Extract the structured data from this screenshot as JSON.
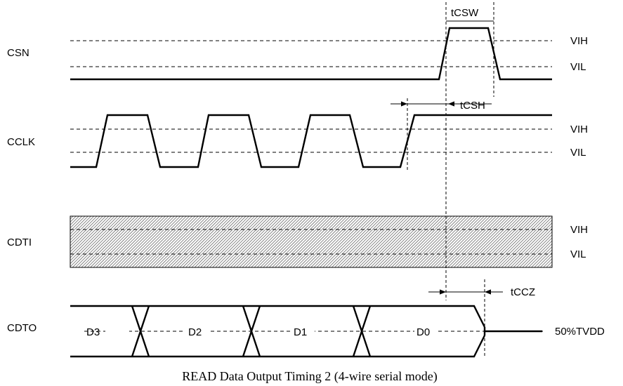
{
  "signals": {
    "csn": "CSN",
    "cclk": "CCLK",
    "cdti": "CDTI",
    "cdto": "CDTO"
  },
  "levels": {
    "vih": "VIH",
    "vil": "VIL",
    "half": "50%TVDD"
  },
  "timing": {
    "tcsw": "tCSW",
    "tcsh": "tCSH",
    "tccz": "tCCZ"
  },
  "data_bits": [
    "D3",
    "D2",
    "D1",
    "D0"
  ],
  "caption": "READ Data Output Timing 2 (4-wire serial mode)"
}
